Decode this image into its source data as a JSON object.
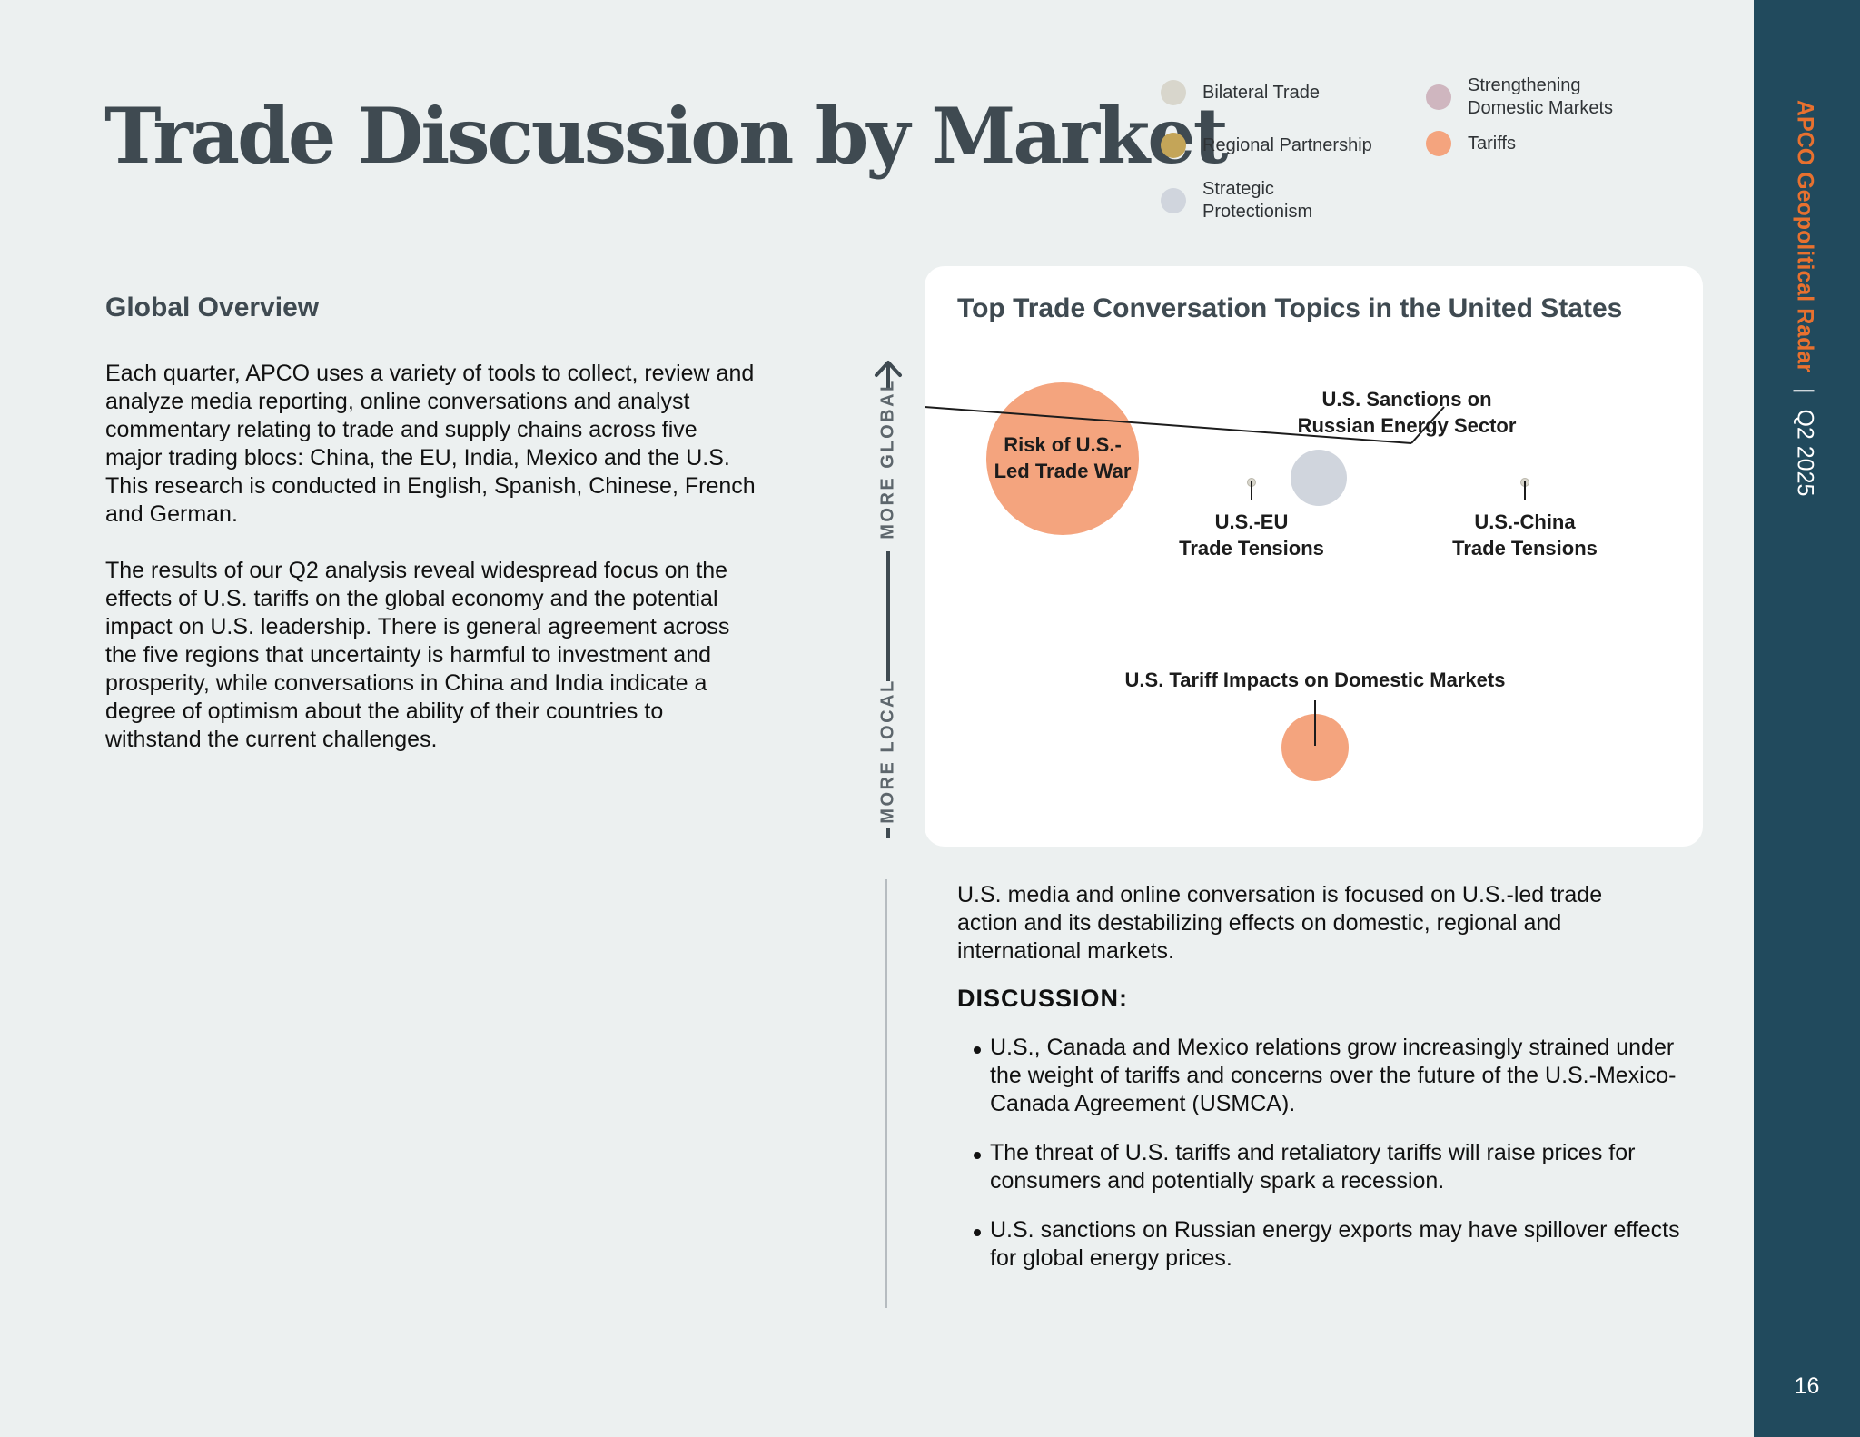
{
  "title": "Trade Discussion by Market",
  "legend": [
    {
      "label": "Bilateral Trade",
      "color": "#d8d6cc"
    },
    {
      "label": "Regional Partnership",
      "color": "#c4a558"
    },
    {
      "label": "Strategic\nProtectionism",
      "color": "#d0d5dd"
    },
    {
      "label": "Strengthening\nDomestic Markets",
      "color": "#cfb6bf"
    },
    {
      "label": "Tariffs",
      "color": "#f4a47e"
    }
  ],
  "overview": {
    "heading": "Global Overview",
    "paragraphs": [
      "Each quarter, APCO uses a variety of tools to collect, review and analyze media reporting, online conversations and analyst commentary relating to trade and supply chains across five major trading blocs: China, the EU, India, Mexico and the U.S. This research is conducted in English, Spanish, Chinese, French and German.",
      "The results of our Q2 analysis reveal widespread focus on the effects of U.S. tariffs on the global economy and the potential impact on U.S. leadership. There is general agreement across the five regions that uncertainty is harmful to investment and prosperity, while conversations in China and India indicate a degree of optimism about the ability of their countries to withstand the current challenges."
    ]
  },
  "axis": {
    "top_label": "MORE GLOBAL",
    "bottom_label": "MORE LOCAL"
  },
  "chart_data": {
    "type": "bubble",
    "title": "Top Trade Conversation Topics in the United States",
    "y_axis": {
      "high": "MORE GLOBAL",
      "low": "MORE LOCAL"
    },
    "bubbles": [
      {
        "label": "Risk of U.S.-\nLed Trade War",
        "category": "Tariffs",
        "color": "#f4a47e",
        "size": 1.0
      },
      {
        "label": "U.S. Sanctions on\nRussian Energy Sector",
        "category": "Strategic Protectionism",
        "color": "#d0d5dd",
        "size": 0.37
      },
      {
        "label": "U.S.-EU\nTrade Tensions",
        "category": "Bilateral Trade",
        "color": "#d8d6cc",
        "size": 0.06
      },
      {
        "label": "U.S.-China\nTrade Tensions",
        "category": "Bilateral Trade",
        "color": "#d8d6cc",
        "size": 0.06
      },
      {
        "label": "U.S. Tariff Impacts on Domestic Markets",
        "category": "Tariffs",
        "color": "#f4a47e",
        "size": 0.44
      }
    ]
  },
  "summary": "U.S. media and online conversation is focused on U.S.-led trade action and its destabilizing effects on domestic, regional and international markets.",
  "discussion": {
    "heading": "DISCUSSION:",
    "bullets": [
      "U.S., Canada and Mexico relations grow increasingly strained under the weight of tariffs and concerns over the future of the U.S.-Mexico-Canada Agreement (USMCA).",
      "The threat of U.S. tariffs and retaliatory tariffs will raise prices for consumers and potentially spark a recession.",
      "U.S. sanctions on Russian energy exports may have spillover effects for global energy prices."
    ]
  },
  "sidebar": {
    "brand": "APCO Geopolitical Radar",
    "separator": "|",
    "period": "Q2 2025",
    "page_number": "16"
  }
}
